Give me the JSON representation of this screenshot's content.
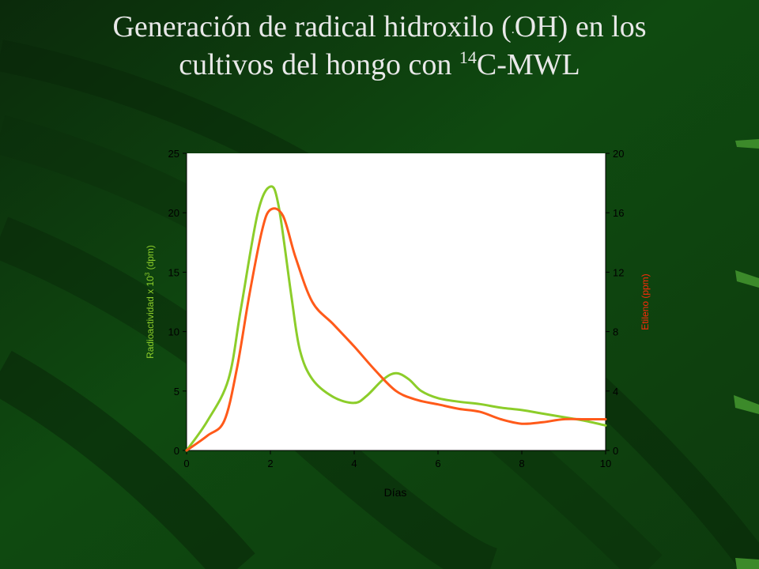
{
  "slide": {
    "title_line1_pre": "Generación de radical hidroxilo (",
    "title_dot": ".",
    "title_line1_post": "OH) en los",
    "title_line2_pre": "cultivos del hongo con ",
    "title_sup": "14",
    "title_line2_post": "C-MWL"
  },
  "colors": {
    "background": "#0d3a0d",
    "radioactivity": "#8ccd2a",
    "ethylene": "#ff5a1a",
    "axes_text": "#000000"
  },
  "chart_data": {
    "type": "line",
    "xlabel": "Días",
    "ylabel_left": "Radioactividad x 10",
    "ylabel_left_sup": "3",
    "ylabel_left_unit": " (dpm)",
    "ylabel_right": "Etileno (ppm)",
    "xlim": [
      0,
      10
    ],
    "ylim_left": [
      0,
      25
    ],
    "ylim_right": [
      0,
      20
    ],
    "x_ticks": [
      "0",
      "2",
      "4",
      "6",
      "8",
      "10"
    ],
    "y_left_ticks": [
      "0",
      "5",
      "10",
      "15",
      "20",
      "25"
    ],
    "y_right_ticks": [
      "0",
      "4",
      "8",
      "12",
      "16",
      "20"
    ],
    "grid": false,
    "series": [
      {
        "axis": "left",
        "color": "#8ccd2a",
        "x": [
          0,
          0.5,
          1.0,
          1.3,
          1.7,
          2.0,
          2.2,
          2.5,
          2.7,
          3.0,
          3.5,
          4.0,
          4.3,
          4.7,
          5.0,
          5.3,
          5.6,
          6.0,
          6.5,
          7.0,
          7.5,
          8.0,
          8.5,
          9.0,
          9.5,
          10.0
        ],
        "values": [
          0,
          2.5,
          6.0,
          12.0,
          20.0,
          22.2,
          20.5,
          13.0,
          8.5,
          6.0,
          4.5,
          4.0,
          4.6,
          6.0,
          6.5,
          6.0,
          5.0,
          4.4,
          4.1,
          3.9,
          3.6,
          3.4,
          3.1,
          2.8,
          2.5,
          2.1
        ]
      },
      {
        "axis": "right",
        "color": "#ff5a1a",
        "x": [
          0,
          0.5,
          0.9,
          1.2,
          1.5,
          1.8,
          2.0,
          2.3,
          2.6,
          3.0,
          3.5,
          4.0,
          4.5,
          5.0,
          5.5,
          6.0,
          6.5,
          7.0,
          7.5,
          8.0,
          8.5,
          9.0,
          9.5,
          10.0
        ],
        "values": [
          0,
          1.0,
          2.0,
          5.5,
          10.5,
          14.8,
          16.2,
          15.8,
          13.0,
          10.0,
          8.5,
          7.0,
          5.4,
          4.0,
          3.4,
          3.1,
          2.8,
          2.6,
          2.1,
          1.8,
          1.9,
          2.1,
          2.1,
          2.1
        ]
      }
    ]
  }
}
